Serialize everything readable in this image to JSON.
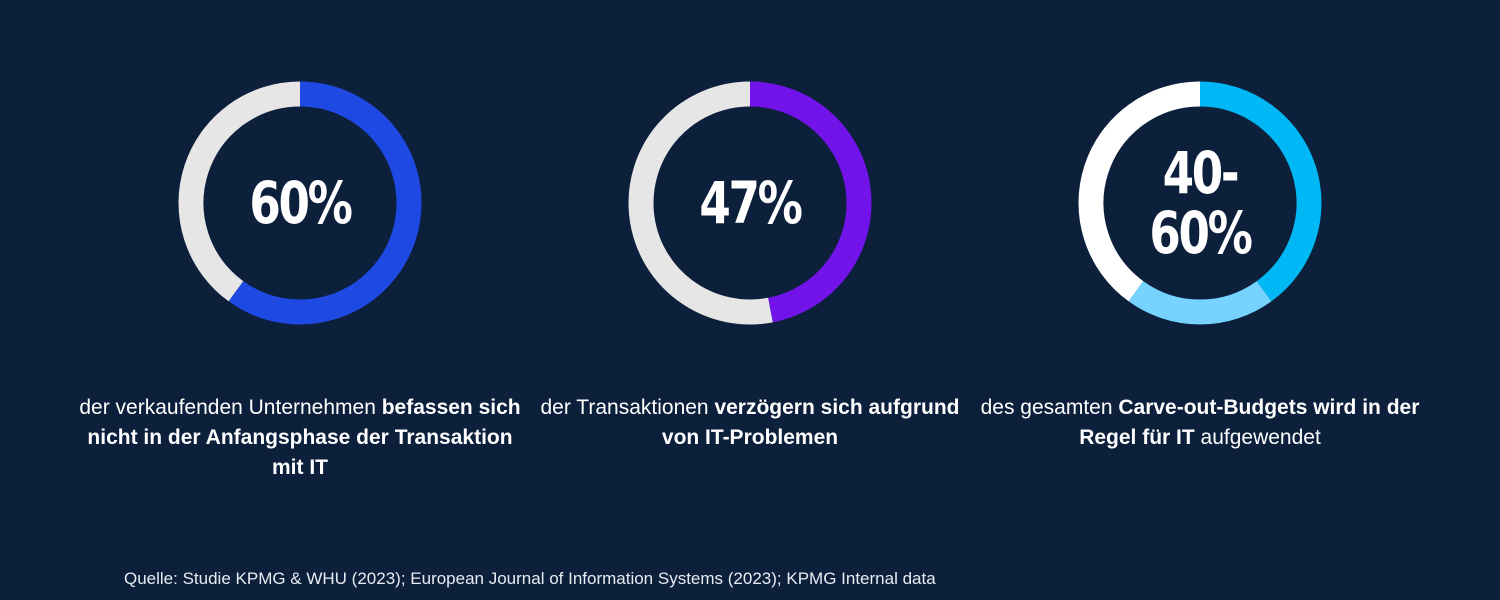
{
  "colors": {
    "background": "#0c1f3b",
    "track_grey": "#e6e6e6",
    "track_white": "#ffffff",
    "blue": "#1e49e2",
    "purple": "#7213ea",
    "cyan_dark": "#00b8f5",
    "cyan_light": "#76d2ff",
    "text": "#ffffff"
  },
  "chart_data": [
    {
      "type": "pie",
      "variant": "donut",
      "label": "60%",
      "segments": [
        {
          "name": "Anteil",
          "value": 60,
          "color": "#1e49e2"
        },
        {
          "name": "Rest",
          "value": 40,
          "color": "#e6e6e6"
        }
      ],
      "caption_parts": [
        {
          "text": "der verkaufenden Unternehmen ",
          "bold": false
        },
        {
          "text": "befassen sich nicht in der Anfangsphase der Transaktion mit IT",
          "bold": true
        }
      ]
    },
    {
      "type": "pie",
      "variant": "donut",
      "label": "47%",
      "segments": [
        {
          "name": "Anteil",
          "value": 47,
          "color": "#7213ea"
        },
        {
          "name": "Rest",
          "value": 53,
          "color": "#e6e6e6"
        }
      ],
      "caption_parts": [
        {
          "text": "der Transaktionen ",
          "bold": false
        },
        {
          "text": "verzögern sich aufgrund von IT-Problemen",
          "bold": true
        }
      ]
    },
    {
      "type": "pie",
      "variant": "donut",
      "label": "40-\n60%",
      "segments": [
        {
          "name": "Untergrenze",
          "value": 40,
          "color": "#00b8f5"
        },
        {
          "name": "Spanne",
          "value": 20,
          "color": "#76d2ff"
        },
        {
          "name": "Rest",
          "value": 40,
          "color": "#ffffff"
        }
      ],
      "caption_parts": [
        {
          "text": "des gesamten ",
          "bold": false
        },
        {
          "text": "Carve-out-Budgets wird in der Regel für IT",
          "bold": true
        },
        {
          "text": " aufgewendet",
          "bold": false
        }
      ]
    }
  ],
  "source": "Quelle: Studie KPMG & WHU (2023); European Journal of Information Systems (2023); KPMG Internal data"
}
